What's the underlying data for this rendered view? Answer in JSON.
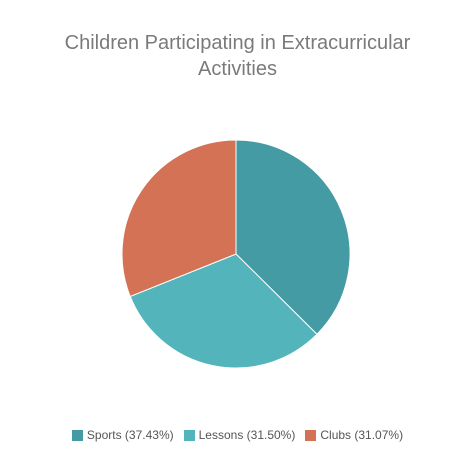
{
  "chart_data": {
    "type": "pie",
    "title_lines": [
      "Children Participating in Extracurricular",
      "Activities"
    ],
    "slices": [
      {
        "label": "Sports",
        "value": 37.43,
        "legend_text": "Sports (37.43%)",
        "color": "#459ba3"
      },
      {
        "label": "Lessons",
        "value": 31.5,
        "legend_text": "Lessons (31.50%)",
        "color": "#53b4bc"
      },
      {
        "label": "Clubs",
        "value": 31.07,
        "legend_text": "Clubs (31.07%)",
        "color": "#d37254"
      }
    ],
    "start_angle_deg": 0,
    "direction": "clockwise",
    "legend_position": "bottom"
  }
}
